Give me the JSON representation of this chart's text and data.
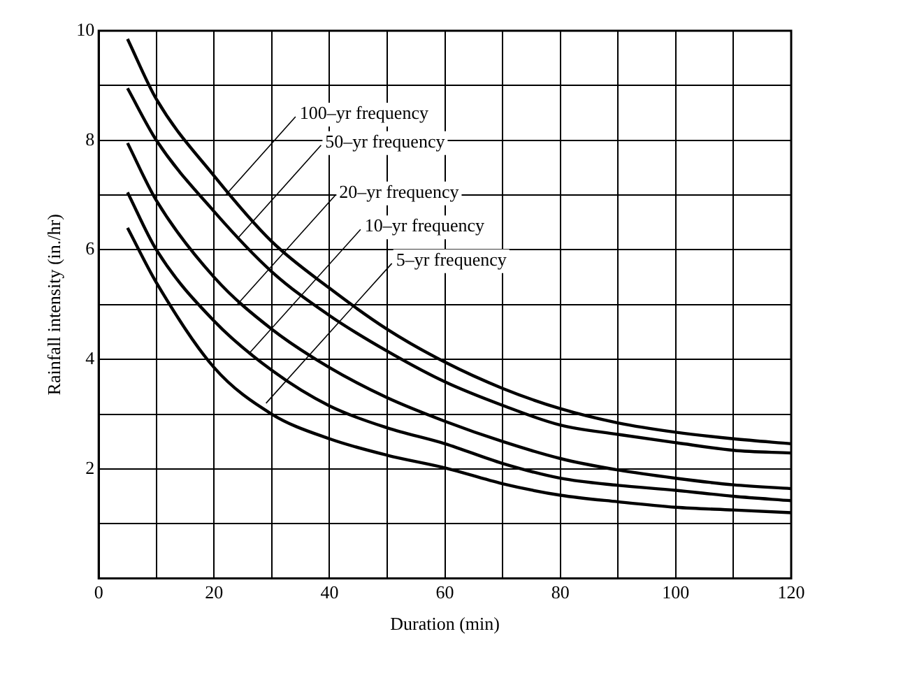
{
  "chart_data": {
    "type": "line",
    "xlabel": "Duration (min)",
    "ylabel": "Rainfall intensity (in./hr)",
    "xlim": [
      0,
      120
    ],
    "ylim": [
      0,
      10
    ],
    "xticks": [
      0,
      {
        "value": 10,
        "label": null
      },
      20,
      {
        "value": 30,
        "label": null
      },
      40,
      {
        "value": 50,
        "label": null
      },
      60,
      {
        "value": 70,
        "label": null
      },
      80,
      {
        "value": 90,
        "label": null
      },
      100,
      {
        "value": 110,
        "label": null
      },
      120
    ],
    "yticks": [
      {
        "value": 1,
        "label": null
      },
      2,
      {
        "value": 3,
        "label": null
      },
      4,
      {
        "value": 5,
        "label": null
      },
      6,
      {
        "value": 7,
        "label": null
      },
      8,
      {
        "value": 9,
        "label": null
      },
      10
    ],
    "x": [
      5,
      10,
      20,
      30,
      40,
      50,
      60,
      70,
      80,
      90,
      100,
      110,
      120
    ],
    "series": [
      {
        "color": "#000000",
        "values": [
          9.85,
          8.75,
          7.35,
          6.15,
          5.3,
          4.55,
          3.95,
          3.47,
          3.1,
          2.84,
          2.67,
          2.55,
          2.46
        ]
      },
      {
        "color": "#000000",
        "values": [
          8.95,
          8.0,
          6.7,
          5.6,
          4.8,
          4.15,
          3.59,
          3.16,
          2.8,
          2.63,
          2.48,
          2.34,
          2.29
        ]
      },
      {
        "color": "#000000",
        "values": [
          7.95,
          6.9,
          5.5,
          4.55,
          3.85,
          3.3,
          2.87,
          2.5,
          2.19,
          1.98,
          1.83,
          1.71,
          1.64
        ]
      },
      {
        "color": "#000000",
        "values": [
          7.05,
          6.0,
          4.7,
          3.8,
          3.15,
          2.75,
          2.46,
          2.1,
          1.83,
          1.7,
          1.61,
          1.5,
          1.42
        ]
      },
      {
        "color": "#000000",
        "values": [
          6.4,
          5.4,
          3.85,
          3.0,
          2.55,
          2.25,
          2.02,
          1.73,
          1.52,
          1.4,
          1.3,
          1.25,
          1.2
        ]
      }
    ],
    "annotations": [
      {
        "text": "100–yr frequency",
        "x": 22,
        "y": 7.0
      },
      {
        "text": "50–yr frequency",
        "x": 24,
        "y": 6.2
      },
      {
        "text": "20–yr frequency",
        "x": 24,
        "y": 5.0
      },
      {
        "text": "10–yr frequency",
        "x": 26,
        "y": 4.1
      },
      {
        "text": "5–yr frequency",
        "x": 29,
        "y": 3.2
      }
    ],
    "grid": true,
    "legend": false,
    "marker": "none",
    "line_style": "solid"
  }
}
